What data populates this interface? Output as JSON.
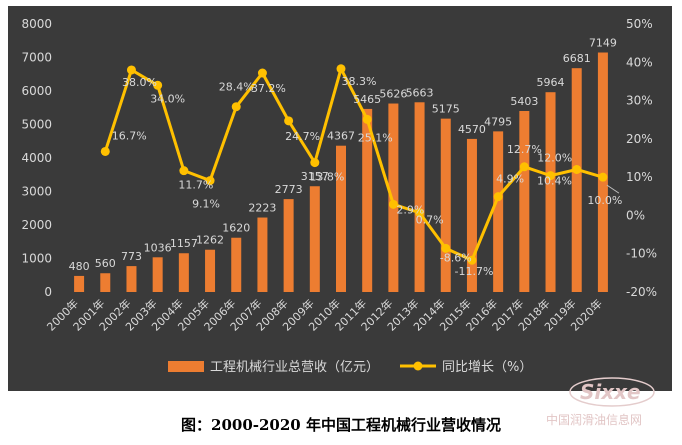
{
  "caption": "图：2000-2020 年中国工程机械行业营收情况",
  "watermark": {
    "logo": "Sixxe",
    "text": "中国润滑油信息网"
  },
  "colors": {
    "background": "#3a3a3a",
    "bar": "#ed7d31",
    "line": "#ffc000",
    "text": "#d9d9d9"
  },
  "chart_data": {
    "type": "bar+line",
    "categories": [
      "2000年",
      "2001年",
      "2002年",
      "2003年",
      "2004年",
      "2005年",
      "2006年",
      "2007年",
      "2008年",
      "2009年",
      "2010年",
      "2011年",
      "2012年",
      "2013年",
      "2014年",
      "2015年",
      "2016年",
      "2017年",
      "2018年",
      "2019年",
      "2020年"
    ],
    "series": [
      {
        "name": "工程机械行业总营收（亿元）",
        "type": "bar",
        "axis": "left",
        "values": [
          480,
          560,
          773,
          1036,
          1157,
          1262,
          1620,
          2223,
          2773,
          3157,
          4367,
          5465,
          5626,
          5663,
          5175,
          4570,
          4795,
          5403,
          5964,
          6681,
          7149
        ],
        "labels": [
          "480",
          "560",
          "773",
          "1036",
          "1157",
          "1262",
          "1620",
          "2223",
          "2773",
          "3157",
          "4367",
          "5465",
          "5626",
          "5663",
          "5175",
          "4570",
          "4795",
          "5403",
          "5964",
          "6681",
          "7149"
        ]
      },
      {
        "name": "同比增长（%）",
        "type": "line",
        "axis": "right",
        "values": [
          null,
          16.7,
          38.0,
          34.0,
          11.7,
          9.1,
          28.4,
          37.2,
          24.7,
          13.8,
          38.3,
          25.1,
          2.9,
          0.7,
          -8.6,
          -11.7,
          4.9,
          12.7,
          10.4,
          12.0,
          10.0
        ],
        "labels": [
          "",
          "16.7%",
          "38.0%",
          "34.0%",
          "11.7%",
          "9.1%",
          "28.4%",
          "37.2%",
          "24.7%",
          "13.8%",
          "38.3%",
          "25.1%",
          "2.9%",
          "0.7%",
          "-8.6%",
          "-11.7%",
          "4.9%",
          "12.7%",
          "10.4%",
          "12.0%",
          "10.0%"
        ]
      }
    ],
    "y_left": {
      "min": 0,
      "max": 8000,
      "ticks": [
        "0",
        "1000",
        "2000",
        "3000",
        "4000",
        "5000",
        "6000",
        "7000",
        "8000"
      ]
    },
    "y_right": {
      "min": -20,
      "max": 50,
      "ticks": [
        "-20%",
        "-10%",
        "0%",
        "10%",
        "20%",
        "30%",
        "40%",
        "50%"
      ]
    },
    "legend": {
      "position": "bottom",
      "items": [
        "工程机械行业总营收（亿元）",
        "同比增长（%）"
      ]
    },
    "grid": false
  }
}
